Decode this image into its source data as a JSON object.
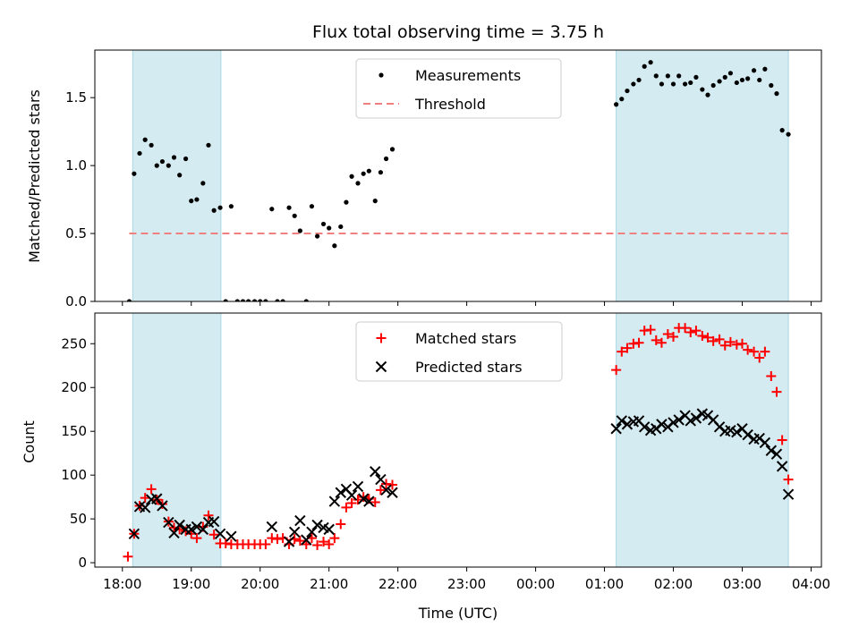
{
  "chart_data": [
    {
      "type": "scatter",
      "title": "Flux total observing time = 3.75 h",
      "xlabel": "",
      "ylabel": "Matched/Predicted stars",
      "ylim": [
        0,
        1.85
      ],
      "yticks": [
        0,
        0.5,
        1.0,
        1.5
      ],
      "ytick_labels": [
        "0.0",
        "0.5",
        "1.0",
        "1.5"
      ],
      "xlim": [
        17.6,
        4.15
      ],
      "shaded_intervals": [
        [
          18.15,
          19.43
        ],
        [
          1.17,
          3.67
        ]
      ],
      "shade_color": "#d4ebf1",
      "legend": {
        "position": "top-center",
        "entries": [
          "Measurements",
          "Threshold"
        ]
      },
      "threshold": {
        "name": "Threshold",
        "value": 0.5,
        "x_range": [
          18.1,
          3.67
        ],
        "color": "#f08080"
      },
      "series": [
        {
          "name": "Measurements",
          "marker": "dot",
          "color": "#000000",
          "points": [
            [
              18.1,
              0.0
            ],
            [
              18.17,
              0.94
            ],
            [
              18.25,
              1.09
            ],
            [
              18.33,
              1.19
            ],
            [
              18.42,
              1.15
            ],
            [
              18.5,
              1.0
            ],
            [
              18.58,
              1.03
            ],
            [
              18.67,
              1.0
            ],
            [
              18.75,
              1.06
            ],
            [
              18.83,
              0.93
            ],
            [
              18.92,
              1.05
            ],
            [
              19.0,
              0.74
            ],
            [
              19.08,
              0.75
            ],
            [
              19.17,
              0.87
            ],
            [
              19.25,
              1.15
            ],
            [
              19.33,
              0.67
            ],
            [
              19.42,
              0.69
            ],
            [
              19.5,
              0.0
            ],
            [
              19.58,
              0.7
            ],
            [
              19.67,
              0.0
            ],
            [
              19.75,
              0.0
            ],
            [
              19.83,
              0.0
            ],
            [
              19.92,
              0.0
            ],
            [
              20.0,
              0.0
            ],
            [
              20.08,
              0.0
            ],
            [
              20.17,
              0.68
            ],
            [
              20.25,
              0.0
            ],
            [
              20.33,
              0.0
            ],
            [
              20.42,
              0.69
            ],
            [
              20.5,
              0.63
            ],
            [
              20.58,
              0.52
            ],
            [
              20.67,
              0.0
            ],
            [
              20.75,
              0.7
            ],
            [
              20.83,
              0.48
            ],
            [
              20.92,
              0.57
            ],
            [
              21.0,
              0.54
            ],
            [
              21.08,
              0.41
            ],
            [
              21.17,
              0.55
            ],
            [
              21.25,
              0.73
            ],
            [
              21.33,
              0.92
            ],
            [
              21.42,
              0.87
            ],
            [
              21.5,
              0.94
            ],
            [
              21.58,
              0.96
            ],
            [
              21.67,
              0.74
            ],
            [
              21.75,
              0.95
            ],
            [
              21.83,
              1.05
            ],
            [
              21.92,
              1.12
            ],
            [
              1.17,
              1.45
            ],
            [
              1.25,
              1.49
            ],
            [
              1.33,
              1.55
            ],
            [
              1.42,
              1.6
            ],
            [
              1.5,
              1.63
            ],
            [
              1.58,
              1.73
            ],
            [
              1.67,
              1.76
            ],
            [
              1.75,
              1.66
            ],
            [
              1.83,
              1.6
            ],
            [
              1.92,
              1.66
            ],
            [
              2.0,
              1.6
            ],
            [
              2.08,
              1.66
            ],
            [
              2.17,
              1.6
            ],
            [
              2.25,
              1.61
            ],
            [
              2.33,
              1.65
            ],
            [
              2.42,
              1.56
            ],
            [
              2.5,
              1.52
            ],
            [
              2.58,
              1.59
            ],
            [
              2.67,
              1.62
            ],
            [
              2.75,
              1.65
            ],
            [
              2.83,
              1.68
            ],
            [
              2.92,
              1.61
            ],
            [
              3.0,
              1.63
            ],
            [
              3.08,
              1.64
            ],
            [
              3.17,
              1.7
            ],
            [
              3.25,
              1.63
            ],
            [
              3.33,
              1.71
            ],
            [
              3.42,
              1.59
            ],
            [
              3.5,
              1.53
            ],
            [
              3.58,
              1.26
            ],
            [
              3.67,
              1.23
            ]
          ]
        }
      ]
    },
    {
      "type": "scatter",
      "title": "",
      "xlabel": "Time (UTC)",
      "ylabel": "Count",
      "ylim": [
        -5,
        285
      ],
      "yticks": [
        0,
        50,
        100,
        150,
        200,
        250
      ],
      "ytick_labels": [
        "0",
        "50",
        "100",
        "150",
        "200",
        "250"
      ],
      "xlim": [
        17.6,
        4.15
      ],
      "xticks": [
        18,
        19,
        20,
        21,
        22,
        23,
        0,
        1,
        2,
        3,
        4
      ],
      "xtick_labels": [
        "18:00",
        "19:00",
        "20:00",
        "21:00",
        "22:00",
        "23:00",
        "00:00",
        "01:00",
        "02:00",
        "03:00",
        "04:00"
      ],
      "shaded_intervals": [
        [
          18.15,
          19.43
        ],
        [
          1.17,
          3.67
        ]
      ],
      "shade_color": "#d4ebf1",
      "legend": {
        "position": "top-center",
        "entries": [
          "Matched stars",
          "Predicted stars"
        ]
      },
      "series": [
        {
          "name": "Matched stars",
          "marker": "plus",
          "color": "#ff0000",
          "points": [
            [
              18.08,
              7
            ],
            [
              18.17,
              33
            ],
            [
              18.25,
              65
            ],
            [
              18.33,
              74
            ],
            [
              18.42,
              84
            ],
            [
              18.5,
              72
            ],
            [
              18.58,
              67
            ],
            [
              18.67,
              47
            ],
            [
              18.75,
              40
            ],
            [
              18.83,
              38
            ],
            [
              18.92,
              36
            ],
            [
              19.0,
              33
            ],
            [
              19.08,
              28
            ],
            [
              19.17,
              41
            ],
            [
              19.25,
              54
            ],
            [
              19.33,
              32
            ],
            [
              19.42,
              22
            ],
            [
              19.5,
              22
            ],
            [
              19.58,
              21
            ],
            [
              19.67,
              21
            ],
            [
              19.75,
              21
            ],
            [
              19.83,
              21
            ],
            [
              19.92,
              21
            ],
            [
              20.0,
              21
            ],
            [
              20.08,
              21
            ],
            [
              20.17,
              28
            ],
            [
              20.25,
              27
            ],
            [
              20.33,
              28
            ],
            [
              20.42,
              21
            ],
            [
              20.5,
              27
            ],
            [
              20.58,
              25
            ],
            [
              20.67,
              21
            ],
            [
              20.75,
              28
            ],
            [
              20.83,
              20
            ],
            [
              20.92,
              24
            ],
            [
              21.0,
              21
            ],
            [
              21.08,
              28
            ],
            [
              21.17,
              44
            ],
            [
              21.25,
              63
            ],
            [
              21.33,
              68
            ],
            [
              21.42,
              72
            ],
            [
              21.5,
              75
            ],
            [
              21.58,
              73
            ],
            [
              21.67,
              69
            ],
            [
              21.75,
              83
            ],
            [
              21.83,
              90
            ],
            [
              21.92,
              89
            ],
            [
              1.17,
              220
            ],
            [
              1.25,
              241
            ],
            [
              1.33,
              245
            ],
            [
              1.42,
              250
            ],
            [
              1.5,
              251
            ],
            [
              1.58,
              265
            ],
            [
              1.67,
              266
            ],
            [
              1.75,
              254
            ],
            [
              1.83,
              251
            ],
            [
              1.92,
              261
            ],
            [
              2.0,
              258
            ],
            [
              2.08,
              268
            ],
            [
              2.17,
              268
            ],
            [
              2.25,
              263
            ],
            [
              2.33,
              265
            ],
            [
              2.42,
              259
            ],
            [
              2.5,
              257
            ],
            [
              2.58,
              253
            ],
            [
              2.67,
              255
            ],
            [
              2.75,
              248
            ],
            [
              2.83,
              252
            ],
            [
              2.92,
              249
            ],
            [
              3.0,
              250
            ],
            [
              3.08,
              243
            ],
            [
              3.17,
              241
            ],
            [
              3.25,
              234
            ],
            [
              3.33,
              241
            ],
            [
              3.42,
              213
            ],
            [
              3.5,
              195
            ],
            [
              3.58,
              140
            ],
            [
              3.67,
              95
            ]
          ]
        },
        {
          "name": "Predicted stars",
          "marker": "x",
          "color": "#000000",
          "points": [
            [
              18.17,
              33
            ],
            [
              18.25,
              64
            ],
            [
              18.33,
              63
            ],
            [
              18.42,
              72
            ],
            [
              18.5,
              73
            ],
            [
              18.58,
              65
            ],
            [
              18.67,
              46
            ],
            [
              18.75,
              34
            ],
            [
              18.83,
              43
            ],
            [
              18.92,
              38
            ],
            [
              19.0,
              38
            ],
            [
              19.08,
              41
            ],
            [
              19.17,
              38
            ],
            [
              19.25,
              46
            ],
            [
              19.33,
              47
            ],
            [
              19.42,
              33
            ],
            [
              19.58,
              30
            ],
            [
              20.17,
              41
            ],
            [
              20.42,
              24
            ],
            [
              20.5,
              35
            ],
            [
              20.58,
              48
            ],
            [
              20.67,
              26
            ],
            [
              20.75,
              35
            ],
            [
              20.83,
              43
            ],
            [
              20.92,
              40
            ],
            [
              21.0,
              38
            ],
            [
              21.08,
              70
            ],
            [
              21.17,
              80
            ],
            [
              21.25,
              84
            ],
            [
              21.33,
              77
            ],
            [
              21.42,
              87
            ],
            [
              21.5,
              73
            ],
            [
              21.58,
              70
            ],
            [
              21.67,
              104
            ],
            [
              21.75,
              95
            ],
            [
              21.83,
              83
            ],
            [
              21.92,
              80
            ],
            [
              1.17,
              153
            ],
            [
              1.25,
              162
            ],
            [
              1.33,
              158
            ],
            [
              1.42,
              161
            ],
            [
              1.5,
              162
            ],
            [
              1.58,
              155
            ],
            [
              1.67,
              151
            ],
            [
              1.75,
              153
            ],
            [
              1.83,
              158
            ],
            [
              1.92,
              155
            ],
            [
              2.0,
              160
            ],
            [
              2.08,
              163
            ],
            [
              2.17,
              168
            ],
            [
              2.25,
              162
            ],
            [
              2.33,
              165
            ],
            [
              2.42,
              170
            ],
            [
              2.5,
              168
            ],
            [
              2.58,
              163
            ],
            [
              2.67,
              155
            ],
            [
              2.75,
              150
            ],
            [
              2.83,
              151
            ],
            [
              2.92,
              149
            ],
            [
              3.0,
              153
            ],
            [
              3.08,
              146
            ],
            [
              3.17,
              141
            ],
            [
              3.25,
              142
            ],
            [
              3.33,
              137
            ],
            [
              3.42,
              128
            ],
            [
              3.5,
              124
            ],
            [
              3.58,
              110
            ],
            [
              3.67,
              78
            ]
          ]
        }
      ]
    }
  ]
}
